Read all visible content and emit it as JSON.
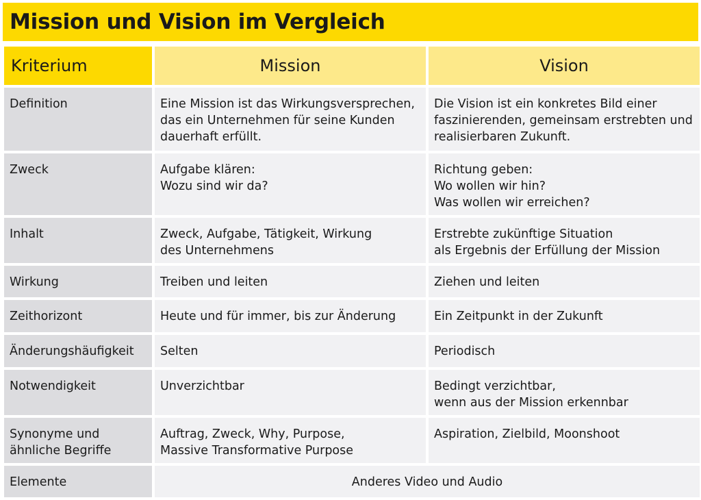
{
  "title": "Mission und Vision im Vergleich",
  "headers": {
    "kriterium": "Kriterium",
    "mission": "Mission",
    "vision": "Vision"
  },
  "rows": [
    {
      "criterion": [
        "Definition"
      ],
      "mission": [
        "Eine Mission ist das Wirkungsversprechen,",
        "das ein Unternehmen für seine Kunden",
        "dauerhaft erfüllt."
      ],
      "vision": [
        "Die Vision ist ein konkretes Bild einer",
        "faszinierenden, gemeinsam erstrebten und",
        "realisierbaren Zukunft."
      ]
    },
    {
      "criterion": [
        "Zweck"
      ],
      "mission": [
        "Aufgabe klären:",
        "Wozu sind wir da?"
      ],
      "vision": [
        "Richtung geben:",
        "Wo wollen wir hin?",
        "Was wollen wir erreichen?"
      ]
    },
    {
      "criterion": [
        "Inhalt"
      ],
      "mission": [
        "Zweck, Aufgabe, Tätigkeit, Wirkung",
        "des Unternehmens"
      ],
      "vision": [
        "Erstrebte zukünftige Situation",
        "als Ergebnis der Erfüllung der Mission"
      ]
    },
    {
      "criterion": [
        "Wirkung"
      ],
      "mission": [
        "Treiben und leiten"
      ],
      "vision": [
        "Ziehen und leiten"
      ]
    },
    {
      "criterion": [
        "Zeithorizont"
      ],
      "mission": [
        "Heute und für immer, bis zur Änderung"
      ],
      "vision": [
        "Ein Zeitpunkt in der Zukunft"
      ]
    },
    {
      "criterion": [
        "Änderungshäufigkeit"
      ],
      "mission": [
        "Selten"
      ],
      "vision": [
        "Periodisch"
      ]
    },
    {
      "criterion": [
        "Notwendigkeit"
      ],
      "mission": [
        "Unverzichtbar"
      ],
      "vision": [
        "Bedingt verzichtbar,",
        "wenn aus der Mission erkennbar"
      ]
    },
    {
      "criterion": [
        "Synonyme und",
        "ähnliche Begriffe"
      ],
      "mission": [
        "Auftrag, Zweck, Why, Purpose,",
        "Massive Transformative Purpose"
      ],
      "vision": [
        "Aspiration, Zielbild, Moonshoot"
      ]
    }
  ],
  "last_row": {
    "criterion": "Elemente",
    "merged": "Anderes Video und Audio"
  }
}
